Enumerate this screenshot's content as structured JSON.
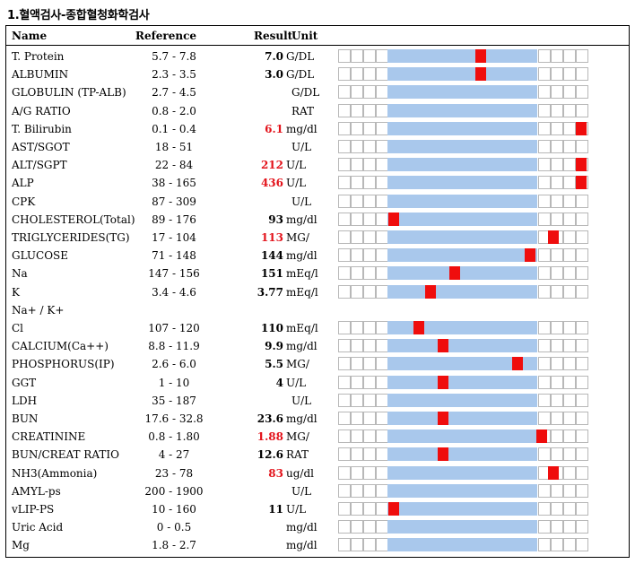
{
  "title": "1.혈액검사-종합혈청화학검사",
  "columns": {
    "name": "Name",
    "reference": "Reference",
    "result": "Result",
    "unit": "Unit"
  },
  "colors": {
    "normal_band": "#a9c8ec",
    "marker": "#ef0d0d",
    "high_text": "#e3131b"
  },
  "rows": [
    {
      "name": "T. Protein",
      "reference": "5.7 - 7.8",
      "result": "7.0",
      "unit": "G/DL",
      "high": false,
      "marker": 0.62
    },
    {
      "name": "ALBUMIN",
      "reference": "2.3 - 3.5",
      "result": "3.0",
      "unit": "G/DL",
      "high": false,
      "marker": 0.62
    },
    {
      "name": "GLOBULIN (TP-ALB)",
      "reference": "2.7 - 4.5",
      "result": "",
      "unit": "G/DL",
      "high": false,
      "marker": null
    },
    {
      "name": "A/G RATIO",
      "reference": "0.8 - 2.0",
      "result": "",
      "unit": "RAT",
      "high": false,
      "marker": null
    },
    {
      "name": "T. Bilirubin",
      "reference": "0.1 - 0.4",
      "result": "6.1",
      "unit": "mg/dl",
      "high": true,
      "marker": 1.36
    },
    {
      "name": "AST/SGOT",
      "reference": "18 - 51",
      "result": "",
      "unit": "U/L",
      "high": false,
      "marker": null
    },
    {
      "name": "ALT/SGPT",
      "reference": "22 - 84",
      "result": "212",
      "unit": "U/L",
      "high": true,
      "marker": 1.36
    },
    {
      "name": "ALP",
      "reference": "38 - 165",
      "result": "436",
      "unit": "U/L",
      "high": true,
      "marker": 1.36
    },
    {
      "name": "CPK",
      "reference": "87 - 309",
      "result": "",
      "unit": "U/L",
      "high": false,
      "marker": null
    },
    {
      "name": "CHOLESTEROL(Total)",
      "reference": "89 - 176",
      "result": "93",
      "unit": "mg/dl",
      "high": false,
      "marker": 0.04
    },
    {
      "name": "TRIGLYCERIDES(TG)",
      "reference": "17 - 104",
      "result": "113",
      "unit": "MG/",
      "high": true,
      "marker": 1.11
    },
    {
      "name": "GLUCOSE",
      "reference": "71 - 148",
      "result": "144",
      "unit": "mg/dl",
      "high": false,
      "marker": 0.95
    },
    {
      "name": "Na",
      "reference": "147 - 156",
      "result": "151",
      "unit": "mEq/l",
      "high": false,
      "marker": 0.45
    },
    {
      "name": "K",
      "reference": "3.4 - 4.6",
      "result": "3.77",
      "unit": "mEq/l",
      "high": false,
      "marker": 0.29
    },
    {
      "name": "Na+ / K+",
      "reference": "",
      "result": "",
      "unit": "",
      "high": false,
      "marker": null,
      "nobar": true
    },
    {
      "name": "Cl",
      "reference": "107 - 120",
      "result": "110",
      "unit": "mEq/l",
      "high": false,
      "marker": 0.21
    },
    {
      "name": "CALCIUM(Ca++)",
      "reference": "8.8 - 11.9",
      "result": "9.9",
      "unit": "mg/dl",
      "high": false,
      "marker": 0.37
    },
    {
      "name": "PHOSPHORUS(IP)",
      "reference": "2.6 - 6.0",
      "result": "5.5",
      "unit": "MG/",
      "high": false,
      "marker": 0.87
    },
    {
      "name": "GGT",
      "reference": "1 - 10",
      "result": "4",
      "unit": "U/L",
      "high": false,
      "marker": 0.37
    },
    {
      "name": "LDH",
      "reference": "35 - 187",
      "result": "",
      "unit": "U/L",
      "high": false,
      "marker": null
    },
    {
      "name": "BUN",
      "reference": "17.6 - 32.8",
      "result": "23.6",
      "unit": "mg/dl",
      "high": false,
      "marker": 0.37
    },
    {
      "name": "CREATININE",
      "reference": "0.8 - 1.80",
      "result": "1.88",
      "unit": "MG/",
      "high": true,
      "marker": 1.03
    },
    {
      "name": "BUN/CREAT RATIO",
      "reference": "4 - 27",
      "result": "12.6",
      "unit": "RAT",
      "high": false,
      "marker": 0.37
    },
    {
      "name": "NH3(Ammonia)",
      "reference": "23 - 78",
      "result": "83",
      "unit": "ug/dl",
      "high": true,
      "marker": 1.11
    },
    {
      "name": "AMYL-ps",
      "reference": "200 - 1900",
      "result": "",
      "unit": "U/L",
      "high": false,
      "marker": null
    },
    {
      "name": "vLIP-PS",
      "reference": "10 - 160",
      "result": "11",
      "unit": "U/L",
      "high": false,
      "marker": 0.04
    },
    {
      "name": "Uric Acid",
      "reference": "0 - 0.5",
      "result": "",
      "unit": "mg/dl",
      "high": false,
      "marker": null
    },
    {
      "name": "Mg",
      "reference": "1.8 - 2.7",
      "result": "",
      "unit": "mg/dl",
      "high": false,
      "marker": null
    }
  ]
}
